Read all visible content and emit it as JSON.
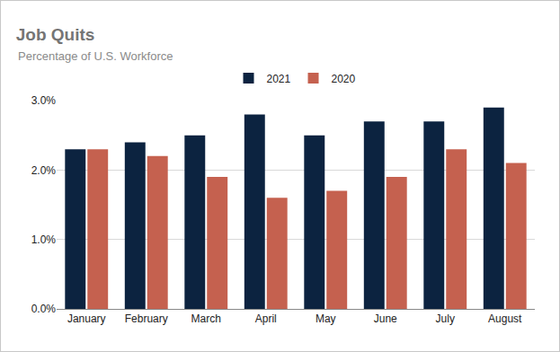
{
  "chart_data": {
    "type": "bar",
    "title": "Job Quits",
    "subtitle": "Percentage of U.S. Workforce",
    "categories": [
      "January",
      "February",
      "March",
      "April",
      "May",
      "June",
      "July",
      "August"
    ],
    "series": [
      {
        "name": "2021",
        "color": "#0c2340",
        "values": [
          2.3,
          2.4,
          2.5,
          2.8,
          2.5,
          2.7,
          2.7,
          2.9
        ]
      },
      {
        "name": "2020",
        "color": "#c5614f",
        "values": [
          2.3,
          2.2,
          1.9,
          1.6,
          1.7,
          1.9,
          2.3,
          2.1
        ]
      }
    ],
    "ylim": [
      0,
      3
    ],
    "yticks": [
      {
        "value": 0,
        "label": "0.0%"
      },
      {
        "value": 1,
        "label": "1.0%"
      },
      {
        "value": 2,
        "label": "2.0%"
      },
      {
        "value": 3,
        "label": "3.0%"
      }
    ],
    "grid": true,
    "legend": "top"
  }
}
